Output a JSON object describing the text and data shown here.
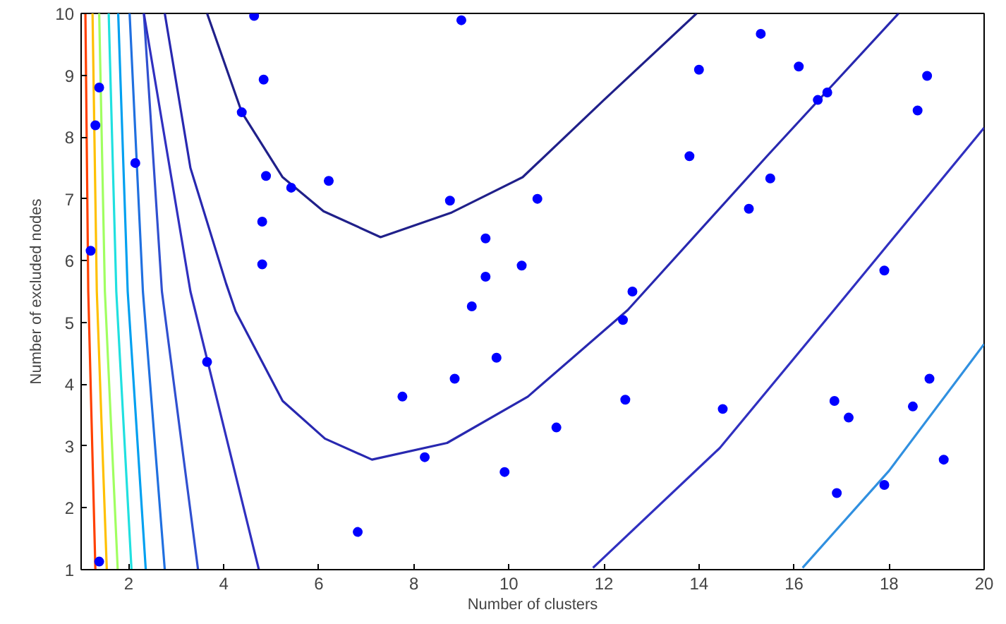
{
  "chart_data": {
    "type": "line",
    "xlabel": "Number of clusters",
    "ylabel": "Number of excluded nodes",
    "xlim": [
      1,
      20
    ],
    "ylim": [
      1,
      10
    ],
    "xticks": [
      2,
      4,
      6,
      8,
      10,
      12,
      14,
      16,
      18,
      20
    ],
    "yticks": [
      1,
      2,
      3,
      4,
      5,
      6,
      7,
      8,
      9,
      10
    ],
    "grid": false,
    "series": [
      {
        "color": "#ff4000",
        "x": [
          1.09,
          1.15,
          1.3
        ],
        "values": [
          10,
          5.5,
          1
        ]
      },
      {
        "color": "#ffc000",
        "x": [
          1.24,
          1.33,
          1.54
        ],
        "values": [
          10,
          5.5,
          1
        ]
      },
      {
        "color": "#a0ff60",
        "x": [
          1.38,
          1.5,
          1.77
        ],
        "values": [
          10,
          5.5,
          1
        ]
      },
      {
        "color": "#20e0e0",
        "x": [
          1.58,
          1.74,
          2.06
        ],
        "values": [
          10,
          5.5,
          1
        ]
      },
      {
        "color": "#00a0f0",
        "x": [
          1.78,
          1.98,
          2.36
        ],
        "values": [
          10,
          5.5,
          1
        ]
      },
      {
        "color": "#2070e0",
        "x": [
          2.02,
          2.3,
          2.76
        ],
        "values": [
          10,
          5.5,
          1
        ]
      },
      {
        "color": "#3050d0",
        "x": [
          2.32,
          2.7,
          3.46
        ],
        "values": [
          10,
          5.5,
          1
        ]
      },
      {
        "color": "#2828b0",
        "x": [
          2.76,
          3.3,
          4.05,
          4.25,
          5.24,
          6.13,
          7.12,
          8.7,
          10.4,
          12.5,
          15.43,
          18.2
        ],
        "values": [
          10,
          7.5,
          5.63,
          5.18,
          3.73,
          3.12,
          2.78,
          3.05,
          3.8,
          5.2,
          7.69,
          10
        ]
      },
      {
        "color": "#20208a",
        "x": [
          3.65,
          4.38,
          5.24,
          6.1,
          7.3,
          8.8,
          10.29,
          12.0,
          13.95
        ],
        "values": [
          10,
          8.4,
          7.35,
          6.8,
          6.38,
          6.78,
          7.35,
          8.6,
          10
        ]
      },
      {
        "color": "#3030c0",
        "x": [
          2.32,
          3.3,
          4.74
        ],
        "values": [
          10,
          5.5,
          1
        ]
      },
      {
        "color": "#3030c0",
        "x": [
          11.77,
          14.44,
          16.82,
          20
        ],
        "values": [
          1.03,
          2.97,
          5.18,
          8.15
        ]
      },
      {
        "color": "#3090e0",
        "x": [
          16.18,
          18,
          20
        ],
        "values": [
          1.03,
          2.6,
          4.65
        ]
      },
      {
        "type": "scatter",
        "marker": "circle",
        "color": "#0000ff",
        "x": [
          1.38,
          1.2,
          1.3,
          1.38,
          2.14,
          3.65,
          4.64,
          4.38,
          4.84,
          4.89,
          5.42,
          6.21,
          4.81,
          4.81,
          6.82,
          7.76,
          8.23,
          8.76,
          8.86,
          9.0,
          9.22,
          9.51,
          9.51,
          9.74,
          9.91,
          10.27,
          10.6,
          11.0,
          12.4,
          12.6,
          12.45,
          13.8,
          14.0,
          14.5,
          15.05,
          15.3,
          15.5,
          16.1,
          16.5,
          16.7,
          16.85,
          16.9,
          17.15,
          17.9,
          17.9,
          18.5,
          18.6,
          18.85,
          18.8,
          19.15
        ],
        "values": [
          1.13,
          6.16,
          8.19,
          8.8,
          7.58,
          4.36,
          9.96,
          8.4,
          8.93,
          7.37,
          7.18,
          7.29,
          6.63,
          5.94,
          1.61,
          3.8,
          2.82,
          6.97,
          4.09,
          9.89,
          5.26,
          6.36,
          5.74,
          4.43,
          2.58,
          5.92,
          7.0,
          3.3,
          5.04,
          5.5,
          3.75,
          7.69,
          9.09,
          3.6,
          6.84,
          9.67,
          7.33,
          9.14,
          8.6,
          8.72,
          3.73,
          2.24,
          3.46,
          5.84,
          2.37,
          3.64,
          8.43,
          4.09,
          8.99,
          2.78
        ]
      }
    ]
  }
}
